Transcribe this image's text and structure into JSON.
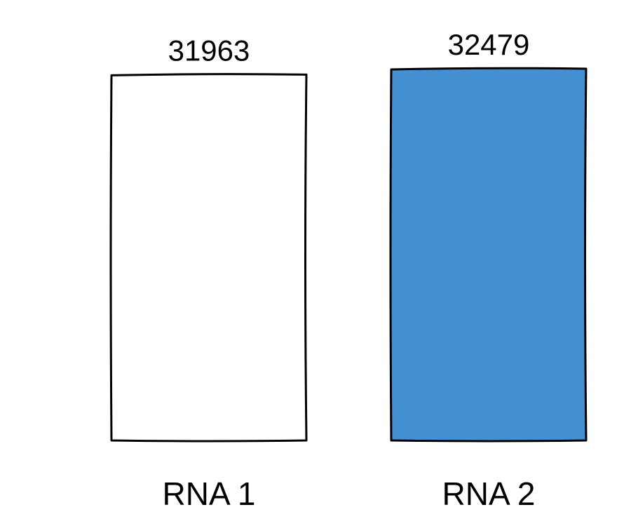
{
  "chart_data": {
    "type": "bar",
    "categories": [
      "RNA 1",
      "RNA 2"
    ],
    "values": [
      31963,
      32479
    ],
    "value_labels": [
      "31963",
      "32479"
    ],
    "ylim": [
      0,
      32479
    ],
    "colors": [
      "#ffffff",
      "#4590d2"
    ],
    "grid": false,
    "legend": "none",
    "style": "hand-drawn"
  }
}
